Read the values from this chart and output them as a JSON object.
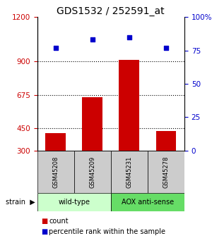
{
  "title": "GDS1532 / 252591_at",
  "samples": [
    "GSM45208",
    "GSM45209",
    "GSM45231",
    "GSM45278"
  ],
  "counts": [
    420,
    660,
    910,
    430
  ],
  "percentiles": [
    77,
    83,
    85,
    77
  ],
  "ylim_left": [
    300,
    1200
  ],
  "yticks_left": [
    300,
    450,
    675,
    900,
    1200
  ],
  "ylim_right": [
    0,
    100
  ],
  "yticks_right": [
    0,
    25,
    50,
    75,
    100
  ],
  "bar_color": "#cc0000",
  "dot_color": "#0000cc",
  "bar_width": 0.55,
  "strain_groups": [
    {
      "label": "wild-type",
      "samples": [
        "GSM45208",
        "GSM45209"
      ],
      "color": "#ccffcc"
    },
    {
      "label": "AOX anti-sense",
      "samples": [
        "GSM45231",
        "GSM45278"
      ],
      "color": "#66dd66"
    }
  ],
  "strain_label": "strain",
  "legend_count": "count",
  "legend_pct": "percentile rank within the sample",
  "title_fontsize": 10,
  "axis_color_left": "#cc0000",
  "axis_color_right": "#0000cc",
  "bg_color": "#ffffff",
  "sample_box_color": "#cccccc",
  "tick_labelsize": 7.5
}
